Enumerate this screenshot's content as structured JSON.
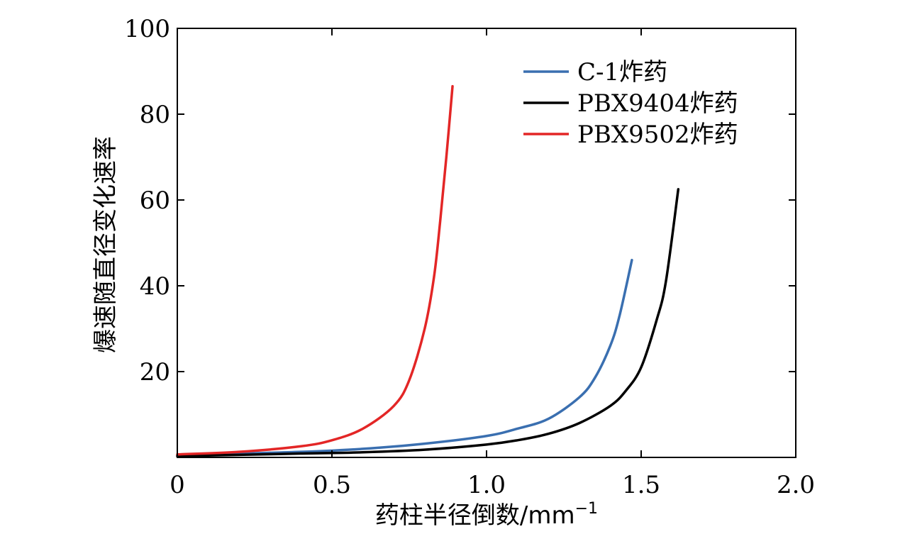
{
  "chart_data": {
    "type": "line",
    "title": "",
    "xlabel": "药柱半径倒数/mm",
    "xlabel_sup": "−1",
    "ylabel": "爆速随直径变化速率",
    "xlim": [
      0,
      2.0
    ],
    "ylim": [
      0,
      100
    ],
    "x_ticks": [
      0,
      0.5,
      1.0,
      1.5,
      2.0
    ],
    "x_tick_labels": [
      "0",
      "0.5",
      "1.0",
      "1.5",
      "2.0"
    ],
    "y_ticks": [
      20,
      40,
      60,
      80,
      100
    ],
    "y_tick_labels": [
      "20",
      "40",
      "60",
      "80",
      "100"
    ],
    "grid": false,
    "legend_position": "top-right",
    "series": [
      {
        "name": "C-1炸药",
        "color": "#3a6fb0",
        "x": [
          0.0,
          0.2,
          0.4,
          0.6,
          0.8,
          1.0,
          1.1,
          1.2,
          1.3,
          1.35,
          1.4,
          1.43,
          1.47
        ],
        "y": [
          0.5,
          0.9,
          1.3,
          2.0,
          3.2,
          5.0,
          6.7,
          9.0,
          14.0,
          18.5,
          26.0,
          33.0,
          46.0
        ]
      },
      {
        "name": "PBX9404炸药",
        "color": "#000000",
        "x": [
          0.0,
          0.2,
          0.4,
          0.6,
          0.8,
          1.0,
          1.1,
          1.2,
          1.3,
          1.4,
          1.45,
          1.5,
          1.55,
          1.58,
          1.62
        ],
        "y": [
          0.3,
          0.6,
          0.9,
          1.2,
          1.8,
          3.0,
          4.0,
          5.5,
          8.0,
          12.0,
          15.5,
          21.0,
          32.0,
          41.0,
          62.5
        ]
      },
      {
        "name": "PBX9502炸药",
        "color": "#e32626",
        "x": [
          0.0,
          0.2,
          0.4,
          0.5,
          0.6,
          0.7,
          0.75,
          0.8,
          0.83,
          0.85,
          0.87,
          0.89
        ],
        "y": [
          0.7,
          1.3,
          2.6,
          4.0,
          6.7,
          12.0,
          18.0,
          30.0,
          42.0,
          55.0,
          70.0,
          86.5
        ]
      }
    ]
  }
}
